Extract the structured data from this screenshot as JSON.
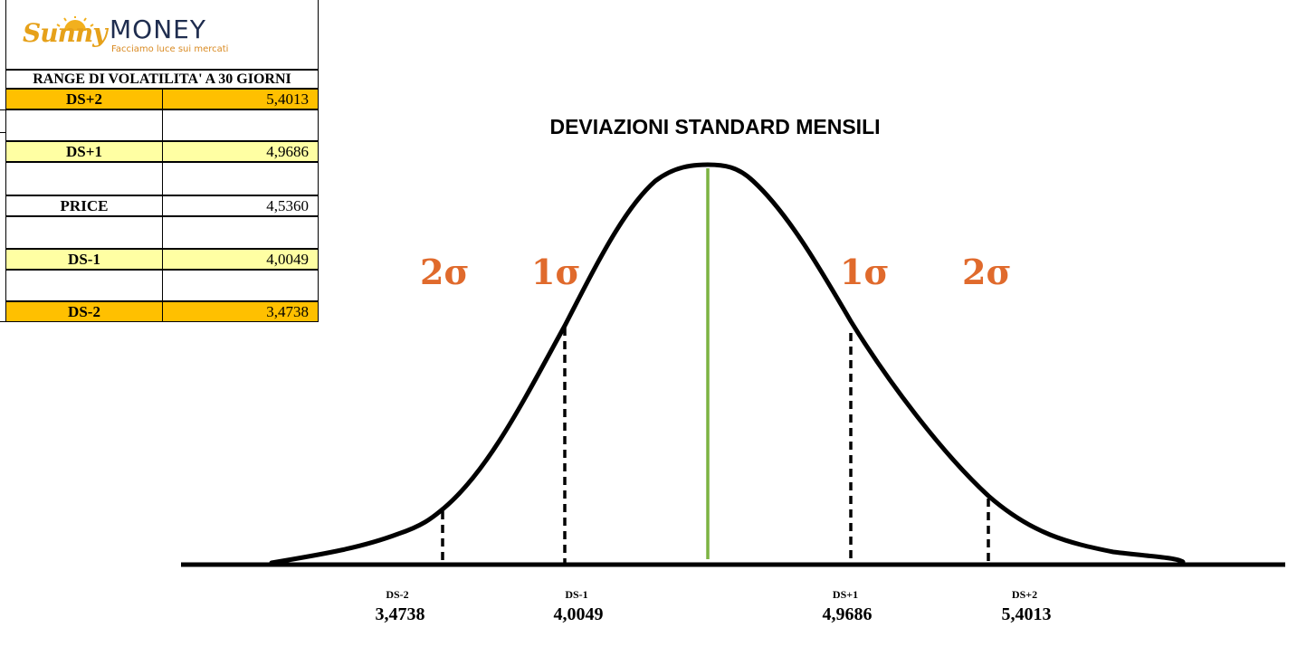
{
  "logo": {
    "script": "Sunny",
    "word": "MONEY",
    "tagline": "Facciamo luce sui mercati"
  },
  "table": {
    "title": "RANGE DI VOLATILITA' A 30 GIORNI",
    "rows": [
      {
        "label": "DS+2",
        "value": "5,4013"
      },
      {
        "label": "",
        "value": ""
      },
      {
        "label": "DS+1",
        "value": "4,9686"
      },
      {
        "label": "",
        "value": ""
      },
      {
        "label": "PRICE",
        "value": "4,5360"
      },
      {
        "label": "",
        "value": ""
      },
      {
        "label": "DS-1",
        "value": "4,0049"
      },
      {
        "label": "",
        "value": ""
      },
      {
        "label": "DS-2",
        "value": "3,4738"
      }
    ]
  },
  "diagram": {
    "title": "DEVIAZIONI STANDARD MENSILI",
    "sigma_labels": [
      "2σ",
      "1σ",
      "1σ",
      "2σ"
    ],
    "markers": [
      {
        "label": "DS-2",
        "value": "3,4738"
      },
      {
        "label": "DS-1",
        "value": "4,0049"
      },
      {
        "label": "DS+1",
        "value": "4,9686"
      },
      {
        "label": "DS+2",
        "value": "5,4013"
      }
    ],
    "colors": {
      "curve": "#000000",
      "center_line": "#7cb342",
      "sigma": "#e06a2c",
      "orange": "#ffc000",
      "yellow": "#ffffa3"
    }
  }
}
